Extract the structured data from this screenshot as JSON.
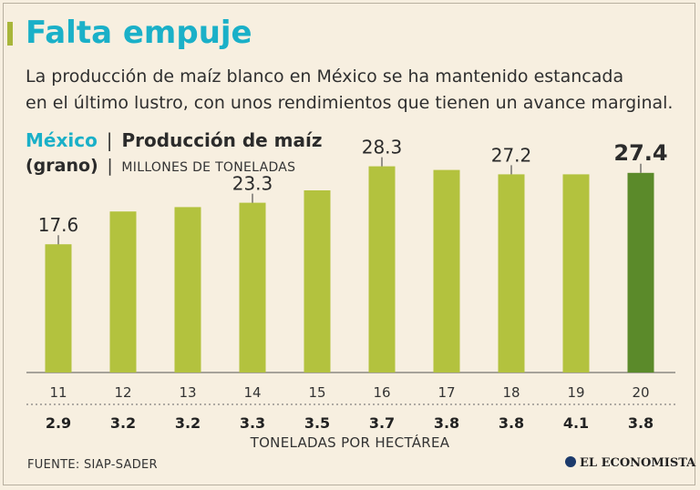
{
  "header": {
    "title": "Falta empuje",
    "subtitle_line1": "La producción de maíz blanco en México se ha mantenido estancada",
    "subtitle_line2": "en el último lustro, con unos rendimientos que tienen un avance marginal."
  },
  "legend": {
    "country": "México",
    "separator": "|",
    "series_name_part1": "Producción de maíz",
    "series_name_part2": "(grano)",
    "units": "MILLONES DE TONELADAS"
  },
  "chart_data": {
    "type": "bar",
    "title": "México | Producción de maíz (grano)",
    "ylabel": "MILLONES DE TONELADAS",
    "xlabel": "",
    "categories": [
      "11",
      "12",
      "13",
      "14",
      "15",
      "16",
      "17",
      "18",
      "19",
      "20"
    ],
    "values": [
      17.6,
      22.1,
      22.7,
      23.3,
      25.0,
      28.3,
      27.8,
      27.2,
      27.2,
      27.4
    ],
    "labels": [
      "17.6",
      "",
      "",
      "23.3",
      "",
      "28.3",
      "",
      "27.2",
      "",
      "27.4"
    ],
    "highlight_index": 9,
    "ylim": [
      0,
      30
    ],
    "grid": false,
    "yields": [
      "2.9",
      "3.2",
      "3.2",
      "3.3",
      "3.5",
      "3.7",
      "3.8",
      "3.8",
      "4.1",
      "3.8"
    ],
    "yield_title": "TONELADAS POR HECTÁREA",
    "colors": {
      "bar": "#b3c23e",
      "highlight": "#5b8a2a",
      "text": "#2b2b2b"
    }
  },
  "footer": {
    "source": "FUENTE: SIAP-SADER",
    "brand": "EL ECONOMISTA"
  }
}
